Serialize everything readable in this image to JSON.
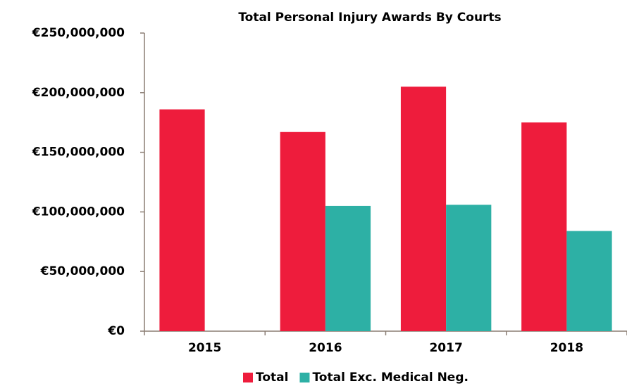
{
  "chart_data": {
    "type": "bar",
    "title": "Total Personal Injury Awards By Courts",
    "categories": [
      "2015",
      "2016",
      "2017",
      "2018"
    ],
    "series": [
      {
        "name": "Total",
        "color": "#ee1c3c",
        "values": [
          186000000,
          167000000,
          205000000,
          175000000
        ]
      },
      {
        "name": "Total Exc. Medical Neg.",
        "color": "#2db0a5",
        "values": [
          null,
          105000000,
          106000000,
          84000000
        ]
      }
    ],
    "ylim": [
      0,
      250000000
    ],
    "yticks": [
      {
        "value": 0,
        "label": "€0"
      },
      {
        "value": 50000000,
        "label": "€50,000,000"
      },
      {
        "value": 100000000,
        "label": "€100,000,000"
      },
      {
        "value": 150000000,
        "label": "€150,000,000"
      },
      {
        "value": 200000000,
        "label": "€200,000,000"
      },
      {
        "value": 250000000,
        "label": "€250,000,000"
      }
    ],
    "legend": "bottom"
  }
}
